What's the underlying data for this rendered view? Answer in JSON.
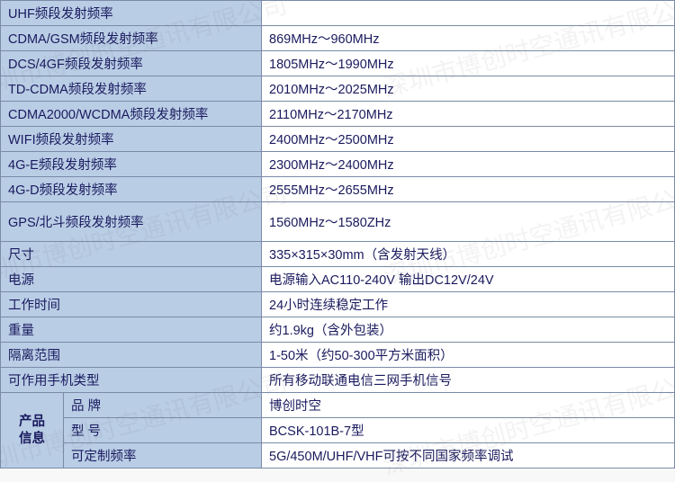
{
  "rows": [
    {
      "label": "UHF频段发射频率",
      "value": ""
    },
    {
      "label": "CDMA/GSM频段发射频率",
      "value": "869MHz～960MHz"
    },
    {
      "label": "DCS/4GF频段发射频率",
      "value": "1805MHz～1990MHz"
    },
    {
      "label": "TD-CDMA频段发射频率",
      "value": "2010MHz～2025MHz"
    },
    {
      "label": "CDMA2000/WCDMA频段发射频率",
      "value": "2110MHz～2170MHz"
    },
    {
      "label": "WIFI频段发射频率",
      "value": "2400MHz～2500MHz"
    },
    {
      "label": "4G-E频段发射频率",
      "value": "2300MHz～2400MHz"
    },
    {
      "label": "4G-D频段发射频率",
      "value": "2555MHz～2655MHz"
    },
    {
      "label": "GPS/北斗频段发射频率",
      "value": "1560MHz～1580ZHz",
      "tall": true
    },
    {
      "label": "尺寸",
      "value": "335×315×30mm（含发射天线）"
    },
    {
      "label": "电源",
      "value": "电源输入AC110-240V 输出DC12V/24V"
    },
    {
      "label": "工作时间",
      "value": "24小时连续稳定工作"
    },
    {
      "label": "重量",
      "value": "约1.9kg（含外包装）"
    },
    {
      "label": "隔离范围",
      "value": "1-50米（约50-300平方米面积）"
    },
    {
      "label": "可作用手机类型",
      "value": "所有移动联通电信三网手机信号"
    }
  ],
  "product_section": {
    "header": "产品\n信息",
    "rows": [
      {
        "label": "品 牌",
        "value": "博创时空"
      },
      {
        "label": "型 号",
        "value": "BCSK-101B-7型"
      },
      {
        "label": "可定制频率",
        "value": "5G/450M/UHF/VHF可按不同国家频率调试"
      }
    ]
  },
  "watermark_text": "深圳市博创时空通讯有限公司",
  "colors": {
    "border": "#7a8ba8",
    "label_bg": "#b9cde5",
    "value_bg": "#ffffff",
    "text": "#1a1a5e"
  }
}
